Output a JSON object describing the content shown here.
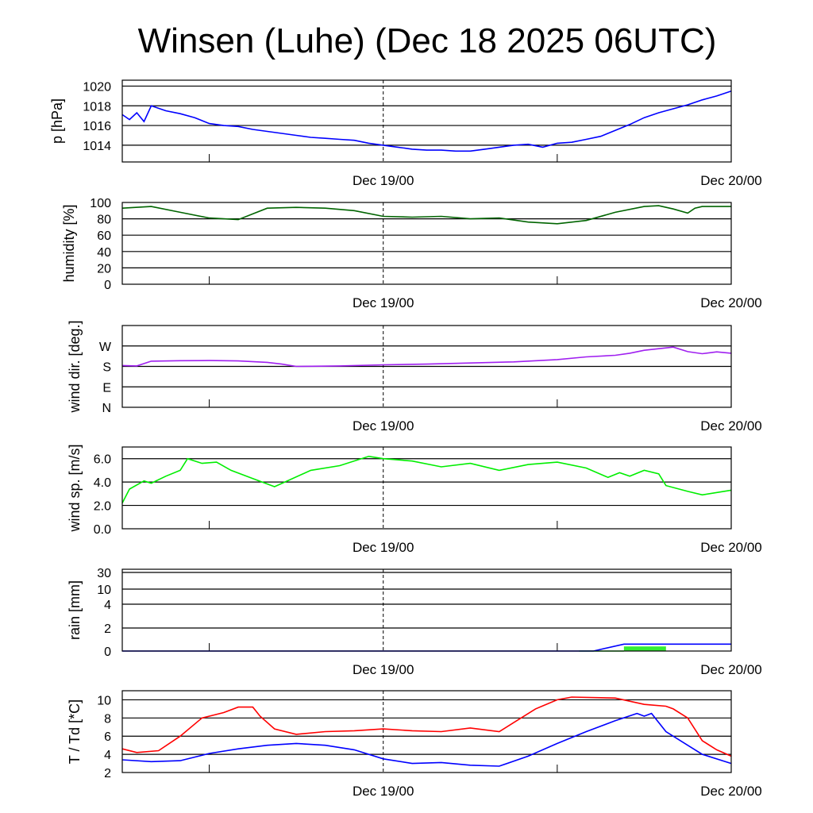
{
  "chart_data": {
    "type": "line",
    "title": "Winsen (Luhe) (Dec 18 2025 06UTC)",
    "x_unit": "hours relative to Dec 19/00 UTC",
    "xlim": [
      -18,
      24
    ],
    "x_tick_labels": [
      {
        "h": 0,
        "label": "Dec 19/00"
      },
      {
        "h": 24,
        "label": "Dec 20/00"
      }
    ],
    "panels": [
      {
        "id": "pressure",
        "ylabel": "p [hPa]",
        "ylim": [
          1012.3,
          1020.6
        ],
        "ticks": [
          1014,
          1016,
          1018,
          1020
        ],
        "tick_labels": [
          "1014",
          "1016",
          "1018",
          "1020"
        ],
        "series": [
          {
            "name": "pressure",
            "color": "#0000ff",
            "x": [
              -18,
              -17.5,
              -17,
              -16.5,
              -16,
              -15,
              -14,
              -13,
              -12,
              -11,
              -10,
              -9,
              -8,
              -7,
              -6,
              -5,
              -4,
              -3,
              -2,
              -1,
              0,
              1,
              2,
              3,
              4,
              5,
              6,
              7,
              8,
              9,
              10,
              11,
              12,
              13,
              14,
              15,
              16,
              17,
              18,
              19,
              20,
              21,
              22,
              23,
              24
            ],
            "y": [
              1017.1,
              1016.6,
              1017.3,
              1016.4,
              1018.0,
              1017.5,
              1017.2,
              1016.8,
              1016.2,
              1016.0,
              1015.9,
              1015.6,
              1015.4,
              1015.2,
              1015.0,
              1014.8,
              1014.7,
              1014.6,
              1014.5,
              1014.2,
              1014.0,
              1013.8,
              1013.6,
              1013.5,
              1013.5,
              1013.4,
              1013.4,
              1013.6,
              1013.8,
              1014.0,
              1014.1,
              1013.8,
              1014.2,
              1014.3,
              1014.6,
              1014.9,
              1015.5,
              1016.1,
              1016.8,
              1017.3,
              1017.7,
              1018.1,
              1018.6,
              1019.0,
              1019.5
            ]
          }
        ]
      },
      {
        "id": "humidity",
        "ylabel": "humidity [%]",
        "ylim": [
          0,
          100
        ],
        "ticks": [
          0,
          20,
          40,
          60,
          80,
          100
        ],
        "tick_labels": [
          "0",
          "20",
          "40",
          "60",
          "80",
          "100"
        ],
        "series": [
          {
            "name": "humidity",
            "color": "#006400",
            "x": [
              -18,
              -16,
              -14,
              -12,
              -10,
              -9,
              -8,
              -6,
              -4,
              -2,
              0,
              2,
              4,
              6,
              8,
              10,
              12,
              14,
              16,
              18,
              19,
              20,
              21,
              21.5,
              22,
              24
            ],
            "y": [
              93,
              95,
              88,
              81,
              79,
              86,
              93,
              94,
              93,
              90,
              83,
              82,
              83,
              80,
              81,
              76,
              74,
              78,
              88,
              95,
              96,
              92,
              87,
              93,
              95,
              95
            ]
          }
        ]
      },
      {
        "id": "wind_dir",
        "ylabel": "wind dir. [deg.]",
        "ylim": [
          0,
          360
        ],
        "ticks": [
          0,
          90,
          180,
          270
        ],
        "tick_labels": [
          "N",
          "E",
          "S",
          "W"
        ],
        "series": [
          {
            "name": "wind direction",
            "color": "#a020f0",
            "x": [
              -18,
              -17,
              -16,
              -14,
              -12,
              -10,
              -8,
              -7,
              -6,
              -3,
              0,
              3,
              6,
              9,
              12,
              14,
              16,
              17,
              18,
              19,
              20,
              21,
              22,
              23,
              24
            ],
            "y": [
              184,
              182,
              203,
              205,
              206,
              204,
              198,
              190,
              180,
              182,
              187,
              190,
              195,
              200,
              210,
              222,
              229,
              238,
              251,
              258,
              265,
              245,
              236,
              244,
              238
            ]
          }
        ]
      },
      {
        "id": "wind_speed",
        "ylabel": "wind sp. [m/s]",
        "ylim": [
          0,
          7
        ],
        "ticks": [
          0,
          2,
          4,
          6
        ],
        "tick_labels": [
          "0.0",
          "2.0",
          "4.0",
          "6.0"
        ],
        "series": [
          {
            "name": "wind speed",
            "color": "#00ee00",
            "x": [
              -18,
              -17.5,
              -16.5,
              -16,
              -15,
              -14,
              -13.5,
              -12.5,
              -11.5,
              -10.5,
              -9,
              -7.5,
              -5,
              -3,
              -1,
              0,
              2,
              4,
              6,
              8,
              10,
              12,
              14,
              15.5,
              16.3,
              17,
              18,
              19,
              19.5,
              21,
              22,
              24
            ],
            "y": [
              2.2,
              3.4,
              4.1,
              3.9,
              4.5,
              5.0,
              6.0,
              5.6,
              5.7,
              5.0,
              4.3,
              3.6,
              5.0,
              5.4,
              6.2,
              6.0,
              5.8,
              5.3,
              5.6,
              5.0,
              5.5,
              5.7,
              5.2,
              4.4,
              4.8,
              4.5,
              5.0,
              4.7,
              3.7,
              3.2,
              2.9,
              3.3
            ]
          }
        ]
      },
      {
        "id": "rain",
        "ylabel": "rain [mm]",
        "ylim": [
          0,
          30
        ],
        "ticks": [
          0,
          2,
          4,
          10,
          30
        ],
        "tick_labels": [
          "0",
          "2",
          "4",
          "10",
          "30"
        ],
        "series": [
          {
            "name": "accumulated rain",
            "color": "#0000ff",
            "x": [
              -18,
              14.5,
              16.6,
              24
            ],
            "y": [
              0,
              0,
              0.6,
              0.6
            ]
          }
        ],
        "bars": {
          "name": "rain amount",
          "color": "#33ee33",
          "items": [
            {
              "x0": 13.5,
              "x1": 16.6,
              "y": 0.05
            },
            {
              "x0": 16.6,
              "x1": 19.5,
              "y": 0.4
            }
          ]
        }
      },
      {
        "id": "temperature",
        "ylabel": "T / Td [*C]",
        "ylim": [
          2,
          11
        ],
        "ticks": [
          2,
          4,
          6,
          8,
          10
        ],
        "tick_labels": [
          "2",
          "4",
          "6",
          "8",
          "10"
        ],
        "series": [
          {
            "name": "T",
            "color": "#ff0000",
            "x": [
              -18,
              -17,
              -15.5,
              -14,
              -12.5,
              -11,
              -10,
              -9,
              -8.5,
              -7.5,
              -6,
              -4,
              -2,
              0,
              2,
              4,
              6,
              8,
              9,
              10.5,
              12,
              13,
              16,
              18,
              19.5,
              20,
              21,
              22,
              23,
              24
            ],
            "y": [
              4.6,
              4.2,
              4.4,
              6.0,
              8.0,
              8.6,
              9.2,
              9.2,
              8.2,
              6.8,
              6.2,
              6.5,
              6.6,
              6.8,
              6.6,
              6.5,
              6.9,
              6.5,
              7.5,
              9.0,
              10.0,
              10.3,
              10.2,
              9.5,
              9.3,
              9.0,
              8.0,
              5.5,
              4.5,
              3.8
            ]
          },
          {
            "name": "Td",
            "color": "#0000ff",
            "x": [
              -18,
              -16,
              -14,
              -12,
              -10,
              -8,
              -6,
              -4,
              -2,
              0,
              2,
              4,
              6,
              8,
              10,
              12,
              14,
              16,
              17.5,
              18,
              18.5,
              19.5,
              21,
              22,
              24
            ],
            "y": [
              3.4,
              3.2,
              3.3,
              4.1,
              4.6,
              5.0,
              5.2,
              5.0,
              4.5,
              3.5,
              3.0,
              3.1,
              2.8,
              2.7,
              3.8,
              5.2,
              6.5,
              7.7,
              8.5,
              8.2,
              8.5,
              6.5,
              5.0,
              4.0,
              3.0
            ]
          }
        ]
      }
    ]
  }
}
